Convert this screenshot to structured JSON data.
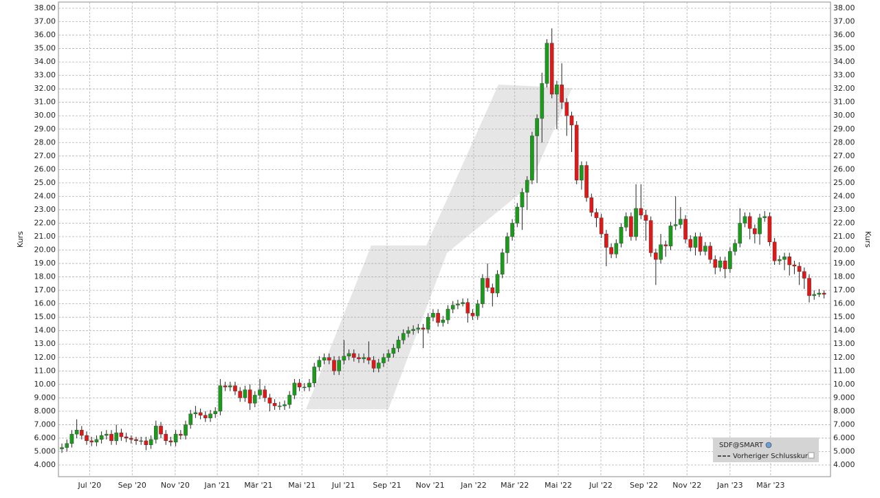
{
  "chart_data": {
    "type": "candlestick",
    "y_label": "Kurs",
    "ylim": [
      3.13,
      38.46
    ],
    "xlim": [
      -0.7,
      155.3
    ],
    "grid": true,
    "yticks": [
      {
        "value": 4,
        "label": "4.000"
      },
      {
        "value": 5,
        "label": "5.000"
      },
      {
        "value": 6,
        "label": "6.000"
      },
      {
        "value": 7,
        "label": "7.000"
      },
      {
        "value": 8,
        "label": "8.000"
      },
      {
        "value": 9,
        "label": "9.000"
      },
      {
        "value": 10,
        "label": "10.00"
      },
      {
        "value": 11,
        "label": "11.00"
      },
      {
        "value": 12,
        "label": "12.00"
      },
      {
        "value": 13,
        "label": "13.00"
      },
      {
        "value": 14,
        "label": "14.00"
      },
      {
        "value": 15,
        "label": "15.00"
      },
      {
        "value": 16,
        "label": "16.00"
      },
      {
        "value": 17,
        "label": "17.00"
      },
      {
        "value": 18,
        "label": "18.00"
      },
      {
        "value": 19,
        "label": "19.00"
      },
      {
        "value": 20,
        "label": "20.00"
      },
      {
        "value": 21,
        "label": "21.00"
      },
      {
        "value": 22,
        "label": "22.00"
      },
      {
        "value": 23,
        "label": "23.00"
      },
      {
        "value": 24,
        "label": "24.00"
      },
      {
        "value": 25,
        "label": "25.00"
      },
      {
        "value": 26,
        "label": "26.00"
      },
      {
        "value": 27,
        "label": "27.00"
      },
      {
        "value": 28,
        "label": "28.00"
      },
      {
        "value": 29,
        "label": "29.00"
      },
      {
        "value": 30,
        "label": "30.00"
      },
      {
        "value": 31,
        "label": "31.00"
      },
      {
        "value": 32,
        "label": "32.00"
      },
      {
        "value": 33,
        "label": "33.00"
      },
      {
        "value": 34,
        "label": "34.00"
      },
      {
        "value": 35,
        "label": "35.00"
      },
      {
        "value": 36,
        "label": "36.00"
      },
      {
        "value": 37,
        "label": "37.00"
      },
      {
        "value": 38,
        "label": "38.00"
      }
    ],
    "xticks": [
      {
        "value": 5.6,
        "label": "Jul '20"
      },
      {
        "value": 14.2,
        "label": "Sep '20"
      },
      {
        "value": 22.9,
        "label": "Nov '20"
      },
      {
        "value": 31.4,
        "label": "Jan '21"
      },
      {
        "value": 39.7,
        "label": "Mär '21"
      },
      {
        "value": 48.5,
        "label": "Mai '21"
      },
      {
        "value": 56.9,
        "label": "Jul '21"
      },
      {
        "value": 65.7,
        "label": "Sep '21"
      },
      {
        "value": 74.4,
        "label": "Nov '21"
      },
      {
        "value": 83.2,
        "label": "Jan '22"
      },
      {
        "value": 91.5,
        "label": "Mär '22"
      },
      {
        "value": 100.3,
        "label": "Mai '22"
      },
      {
        "value": 108.9,
        "label": "Jul '22"
      },
      {
        "value": 117.6,
        "label": "Sep '22"
      },
      {
        "value": 126.3,
        "label": "Nov '22"
      },
      {
        "value": 135.0,
        "label": "Jan '23"
      },
      {
        "value": 143.2,
        "label": "Mär '23"
      }
    ],
    "legend": {
      "position": "bottom-right",
      "items": [
        "SDF@SMART",
        "Vorheriger Schlusskurs"
      ]
    },
    "series": [
      {
        "name": "SDF@SMART",
        "up_color": "#1c9a1c",
        "down_color": "#e01818",
        "open": [
          5.2,
          5.3,
          5.6,
          6.3,
          6.6,
          6.2,
          5.8,
          5.7,
          5.9,
          6.2,
          6.3,
          5.8,
          6.4,
          6.1,
          6.0,
          5.9,
          5.8,
          5.8,
          5.5,
          5.9,
          6.9,
          6.3,
          5.8,
          5.7,
          6.3,
          6.2,
          7.0,
          7.8,
          7.9,
          7.7,
          7.5,
          7.8,
          8.0,
          9.9,
          9.8,
          9.9,
          9.5,
          9.0,
          9.6,
          8.6,
          9.2,
          9.6,
          9.0,
          8.6,
          8.4,
          8.4,
          8.5,
          9.2,
          10.1,
          9.8,
          9.8,
          10.1,
          11.3,
          11.8,
          12.0,
          11.8,
          11.0,
          11.8,
          12.1,
          12.3,
          12.0,
          11.9,
          12.0,
          11.8,
          11.2,
          11.6,
          12.0,
          12.3,
          12.7,
          13.3,
          13.8,
          14.0,
          14.1,
          14.2,
          14.1,
          15.0,
          15.3,
          14.6,
          14.8,
          15.6,
          15.9,
          16.0,
          16.1,
          15.3,
          15.1,
          16.0,
          17.9,
          17.2,
          16.8,
          18.2,
          19.8,
          21.0,
          22.0,
          23.2,
          24.3,
          25.2,
          28.5,
          29.8,
          32.4,
          35.4,
          31.6,
          32.3,
          31.0,
          30.0,
          29.3,
          25.2,
          26.3,
          23.9,
          22.8,
          22.4,
          21.2,
          20.2,
          19.7,
          20.5,
          21.7,
          22.5,
          21.0,
          23.1,
          22.6,
          22.2,
          19.8,
          19.3,
          20.4,
          20.3,
          21.8,
          21.9,
          22.3,
          20.8,
          20.2,
          21.0,
          19.9,
          20.3,
          19.3,
          18.7,
          19.2,
          18.6,
          19.9,
          20.5,
          22.0,
          22.5,
          21.6,
          21.2,
          22.4,
          22.5,
          20.6,
          19.2,
          19.3,
          19.5,
          18.9,
          18.8,
          18.4,
          17.9,
          16.6,
          16.7,
          16.8
        ],
        "high": [
          5.6,
          5.9,
          6.6,
          7.4,
          6.9,
          6.5,
          6.1,
          6.2,
          6.5,
          6.6,
          6.6,
          7.0,
          6.7,
          6.4,
          6.2,
          6.1,
          6.1,
          6.1,
          6.2,
          7.3,
          7.2,
          6.6,
          6.1,
          6.6,
          6.6,
          7.3,
          8.1,
          8.4,
          8.2,
          8.0,
          8.1,
          8.3,
          10.4,
          10.2,
          10.2,
          10.2,
          9.8,
          9.9,
          10.0,
          9.5,
          10.4,
          9.9,
          9.3,
          8.9,
          8.7,
          8.8,
          9.5,
          10.4,
          10.4,
          10.1,
          10.4,
          11.6,
          12.1,
          12.3,
          12.3,
          12.1,
          12.1,
          13.3,
          12.6,
          12.6,
          12.3,
          12.3,
          13.2,
          12.1,
          11.9,
          12.3,
          12.6,
          13.0,
          13.6,
          14.1,
          14.3,
          14.4,
          14.5,
          14.5,
          15.3,
          15.6,
          15.6,
          15.1,
          15.9,
          16.2,
          16.3,
          16.4,
          16.4,
          15.6,
          16.3,
          18.2,
          19.0,
          17.5,
          18.5,
          20.1,
          21.3,
          22.3,
          23.5,
          24.6,
          25.5,
          28.8,
          30.1,
          33.2,
          35.7,
          36.5,
          32.6,
          33.9,
          31.3,
          30.3,
          29.6,
          26.6,
          26.6,
          24.2,
          23.1,
          22.7,
          21.5,
          20.5,
          20.8,
          22.0,
          22.8,
          22.8,
          24.9,
          24.9,
          23.0,
          22.5,
          20.1,
          21.2,
          20.7,
          22.1,
          24.0,
          23.2,
          22.6,
          21.1,
          21.3,
          21.3,
          20.6,
          20.6,
          19.6,
          19.5,
          19.5,
          20.2,
          20.8,
          23.1,
          22.8,
          22.8,
          21.9,
          22.7,
          22.9,
          22.8,
          20.9,
          19.6,
          19.8,
          19.8,
          19.2,
          19.1,
          18.7,
          18.2,
          17.0,
          17.1,
          17.0
        ],
        "low": [
          4.9,
          5.0,
          5.3,
          6.0,
          5.9,
          5.5,
          5.4,
          5.4,
          5.6,
          5.9,
          5.5,
          5.5,
          5.8,
          5.7,
          5.6,
          5.5,
          5.5,
          5.1,
          5.2,
          5.6,
          6.0,
          5.5,
          5.4,
          5.4,
          5.9,
          5.9,
          6.7,
          7.5,
          7.4,
          7.2,
          7.2,
          7.5,
          7.7,
          9.5,
          9.5,
          9.2,
          8.7,
          8.7,
          8.1,
          8.3,
          8.9,
          8.7,
          8.0,
          8.1,
          8.1,
          8.1,
          8.2,
          8.9,
          9.5,
          9.5,
          9.5,
          9.8,
          11.0,
          11.5,
          11.5,
          10.7,
          10.7,
          11.5,
          11.8,
          11.7,
          11.6,
          11.6,
          11.5,
          10.9,
          10.9,
          11.3,
          11.7,
          12.0,
          12.4,
          13.0,
          13.5,
          13.7,
          13.8,
          12.7,
          13.8,
          14.7,
          14.3,
          14.3,
          14.5,
          15.3,
          15.6,
          15.8,
          14.6,
          14.8,
          14.8,
          15.7,
          16.9,
          15.8,
          16.5,
          17.9,
          19.0,
          20.7,
          21.7,
          21.5,
          23.0,
          24.9,
          25.0,
          28.0,
          32.1,
          31.3,
          29.0,
          30.5,
          28.5,
          27.3,
          24.9,
          24.5,
          23.6,
          22.5,
          21.7,
          20.9,
          18.8,
          19.4,
          19.4,
          20.2,
          21.4,
          20.7,
          20.7,
          22.3,
          20.7,
          19.5,
          17.4,
          19.0,
          19.5,
          20.0,
          21.5,
          21.6,
          20.5,
          19.9,
          19.6,
          19.6,
          19.6,
          19.0,
          18.2,
          18.4,
          17.9,
          18.3,
          19.6,
          20.2,
          21.7,
          20.8,
          20.5,
          20.4,
          22.1,
          20.3,
          18.9,
          18.9,
          18.5,
          18.1,
          18.2,
          17.4,
          17.1,
          16.1,
          16.3,
          16.5,
          16.4
        ],
        "close": [
          5.3,
          5.6,
          6.3,
          6.6,
          6.2,
          5.8,
          5.7,
          5.9,
          6.2,
          6.3,
          5.8,
          6.4,
          6.1,
          6.0,
          5.9,
          5.8,
          5.8,
          5.5,
          5.9,
          6.9,
          6.3,
          5.8,
          5.7,
          6.3,
          6.2,
          7.0,
          7.8,
          7.9,
          7.7,
          7.5,
          7.8,
          8.0,
          9.9,
          9.8,
          9.9,
          9.5,
          9.0,
          9.6,
          8.6,
          9.2,
          9.6,
          9.0,
          8.6,
          8.4,
          8.4,
          8.5,
          9.2,
          10.1,
          9.8,
          9.8,
          10.1,
          11.3,
          11.8,
          12.0,
          11.8,
          11.0,
          11.8,
          12.1,
          12.3,
          12.0,
          11.9,
          12.0,
          11.8,
          11.2,
          11.6,
          12.0,
          12.3,
          12.7,
          13.3,
          13.8,
          14.0,
          14.1,
          14.2,
          14.1,
          15.0,
          15.3,
          14.6,
          14.8,
          15.6,
          15.9,
          16.0,
          16.1,
          15.3,
          15.1,
          16.0,
          17.9,
          17.2,
          16.8,
          18.2,
          19.8,
          21.0,
          22.0,
          23.2,
          24.3,
          25.2,
          28.5,
          29.8,
          32.4,
          35.4,
          31.6,
          32.3,
          31.0,
          30.0,
          29.3,
          25.2,
          26.3,
          23.9,
          22.8,
          22.4,
          21.2,
          20.2,
          19.7,
          20.5,
          21.7,
          22.5,
          21.0,
          23.1,
          22.6,
          22.2,
          19.8,
          19.3,
          20.4,
          20.3,
          21.8,
          21.9,
          22.3,
          20.8,
          20.2,
          21.0,
          19.9,
          20.3,
          19.3,
          18.7,
          19.2,
          18.6,
          19.9,
          20.5,
          22.0,
          22.5,
          21.6,
          21.2,
          22.4,
          22.5,
          20.6,
          19.2,
          19.3,
          19.5,
          18.9,
          18.8,
          18.4,
          17.9,
          16.6,
          16.7,
          16.8,
          16.7
        ]
      }
    ]
  }
}
